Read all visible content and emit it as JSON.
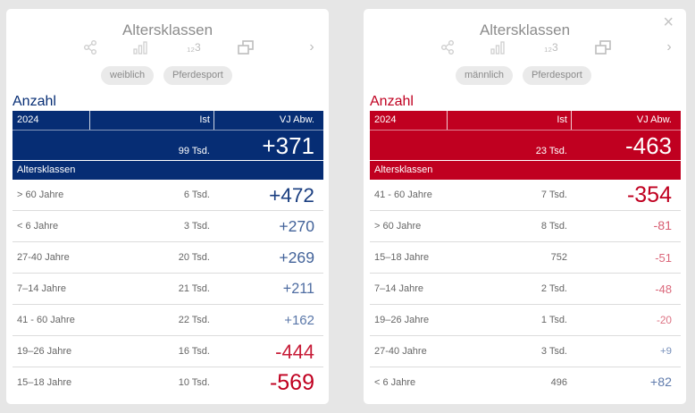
{
  "colors": {
    "blue": "#062d74",
    "red": "#c00020",
    "positive_strong": "#062d74",
    "positive_weak": "#7a93bd",
    "negative_strong": "#c00020",
    "negative_weak": "#df7a8a"
  },
  "icons": [
    "share-icon",
    "bar-chart-icon",
    "number-format-icon",
    "copy-window-icon",
    "chevron-right-icon",
    "close-icon"
  ],
  "toolbar": {
    "number_label": "₁₂3",
    "chevron": "›",
    "close": "×"
  },
  "cards": [
    {
      "title": "Altersklassen",
      "chips": [
        "weiblich",
        "Pferdesport"
      ],
      "section_title": "Anzahl",
      "header": {
        "year": "2024",
        "ist": "Ist",
        "abw": "VJ Abw."
      },
      "total": {
        "ist": "99 Tsd.",
        "abw": "+371"
      },
      "subheader": "Altersklassen",
      "rows": [
        {
          "label": "> 60 Jahre",
          "ist": "6 Tsd.",
          "abw": "+472"
        },
        {
          "label": "< 6 Jahre",
          "ist": "3 Tsd.",
          "abw": "+270"
        },
        {
          "label": "27-40 Jahre",
          "ist": "20 Tsd.",
          "abw": "+269"
        },
        {
          "label": "7–14 Jahre",
          "ist": "21 Tsd.",
          "abw": "+211"
        },
        {
          "label": "41 - 60 Jahre",
          "ist": "22 Tsd.",
          "abw": "+162"
        },
        {
          "label": "19–26 Jahre",
          "ist": "16 Tsd.",
          "abw": "-444"
        },
        {
          "label": "15–18 Jahre",
          "ist": "10 Tsd.",
          "abw": "-569"
        }
      ]
    },
    {
      "title": "Altersklassen",
      "chips": [
        "männlich",
        "Pferdesport"
      ],
      "section_title": "Anzahl",
      "header": {
        "year": "2024",
        "ist": "Ist",
        "abw": "VJ Abw."
      },
      "total": {
        "ist": "23 Tsd.",
        "abw": "-463"
      },
      "subheader": "Altersklassen",
      "rows": [
        {
          "label": "41 - 60 Jahre",
          "ist": "7 Tsd.",
          "abw": "-354"
        },
        {
          "label": "> 60 Jahre",
          "ist": "8 Tsd.",
          "abw": "-81"
        },
        {
          "label": "15–18 Jahre",
          "ist": "752",
          "abw": "-51"
        },
        {
          "label": "7–14 Jahre",
          "ist": "2 Tsd.",
          "abw": "-48"
        },
        {
          "label": "19–26 Jahre",
          "ist": "1 Tsd.",
          "abw": "-20"
        },
        {
          "label": "27-40 Jahre",
          "ist": "3 Tsd.",
          "abw": "+9"
        },
        {
          "label": "< 6 Jahre",
          "ist": "496",
          "abw": "+82"
        }
      ]
    }
  ]
}
